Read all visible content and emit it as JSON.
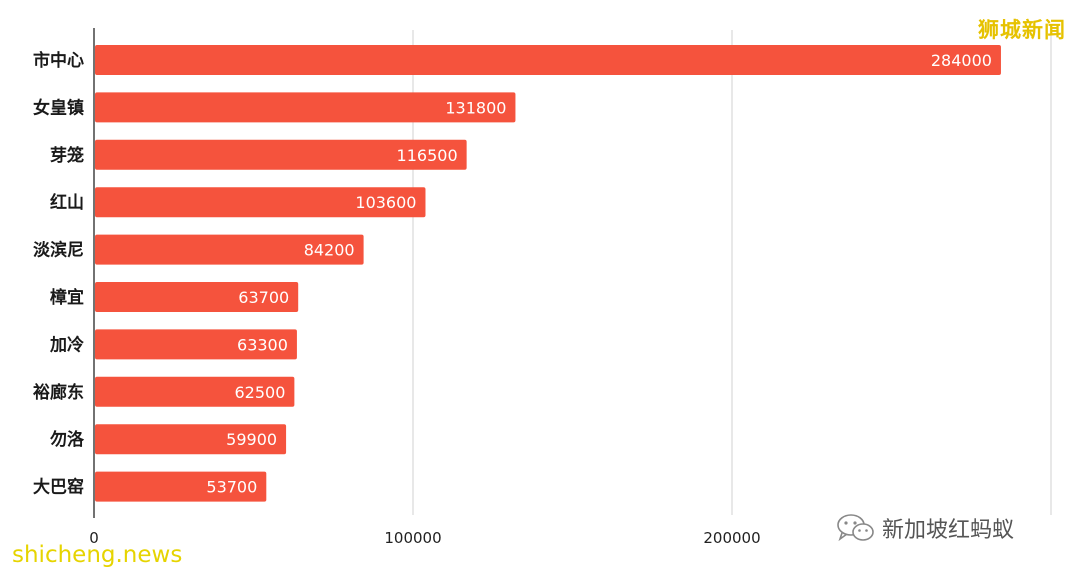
{
  "chart_data": {
    "type": "bar",
    "orientation": "horizontal",
    "categories": [
      "市中心",
      "女皇镇",
      "芽笼",
      "红山",
      "淡滨尼",
      "樟宜",
      "加冷",
      "裕廊东",
      "勿洛",
      "大巴窑"
    ],
    "values": [
      284000,
      131800,
      116500,
      103600,
      84200,
      63700,
      63300,
      62500,
      59900,
      53700
    ],
    "data_labels": [
      "284000",
      "131800",
      "116500",
      "103600",
      "84200",
      "63700",
      "63300",
      "62500",
      "59900",
      "53700"
    ],
    "x_ticks": [
      0,
      100000,
      200000
    ],
    "x_tick_labels": [
      "0",
      "100000",
      "200000"
    ],
    "xlim": [
      0,
      300000
    ],
    "bar_color": "#f5533d",
    "grid": true,
    "title": "",
    "xlabel": "",
    "ylabel": ""
  },
  "watermarks": {
    "top_right": "狮城新闻",
    "bottom_left": "shicheng.news",
    "bottom_right": "新加坡红蚂蚁",
    "bottom_right_icon": "wechat-icon"
  },
  "colors": {
    "bar": "#f5533d",
    "grid": "#d0d0d0",
    "axis": "#444444",
    "watermark_yellow": "#e6c200"
  }
}
